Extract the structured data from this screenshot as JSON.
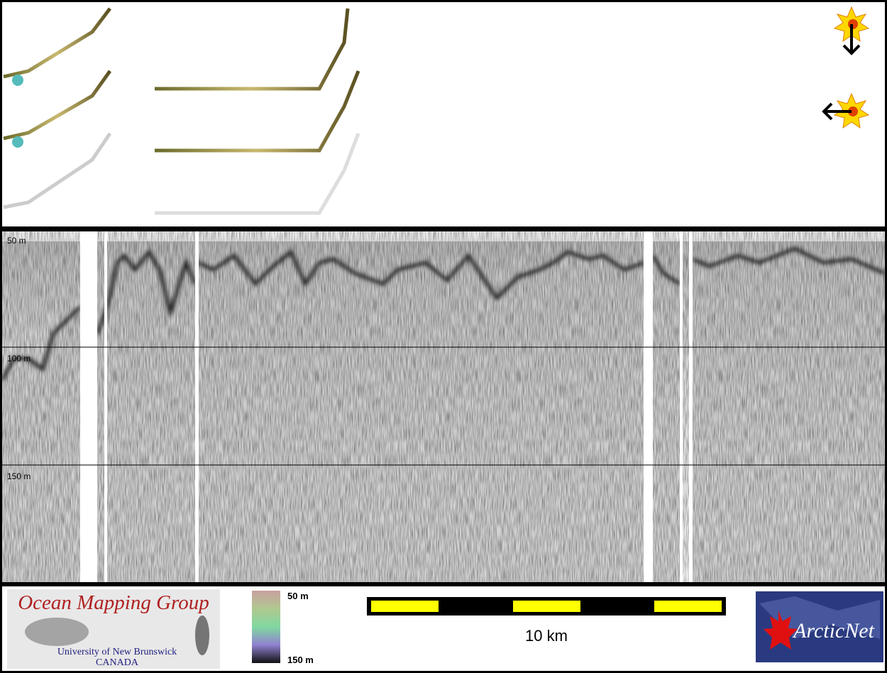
{
  "echogram": {
    "depth_labels": [
      "50 m",
      "100 m",
      "150 m"
    ]
  },
  "logo": {
    "title": "Ocean Mapping Group",
    "line1": "University of New Brunswick",
    "line2": "CANADA"
  },
  "colorbar": {
    "top": "50 m",
    "bottom": "150 m"
  },
  "scale_bar": {
    "label": "10 km"
  },
  "partner_logo": {
    "name": "ArcticNet"
  }
}
